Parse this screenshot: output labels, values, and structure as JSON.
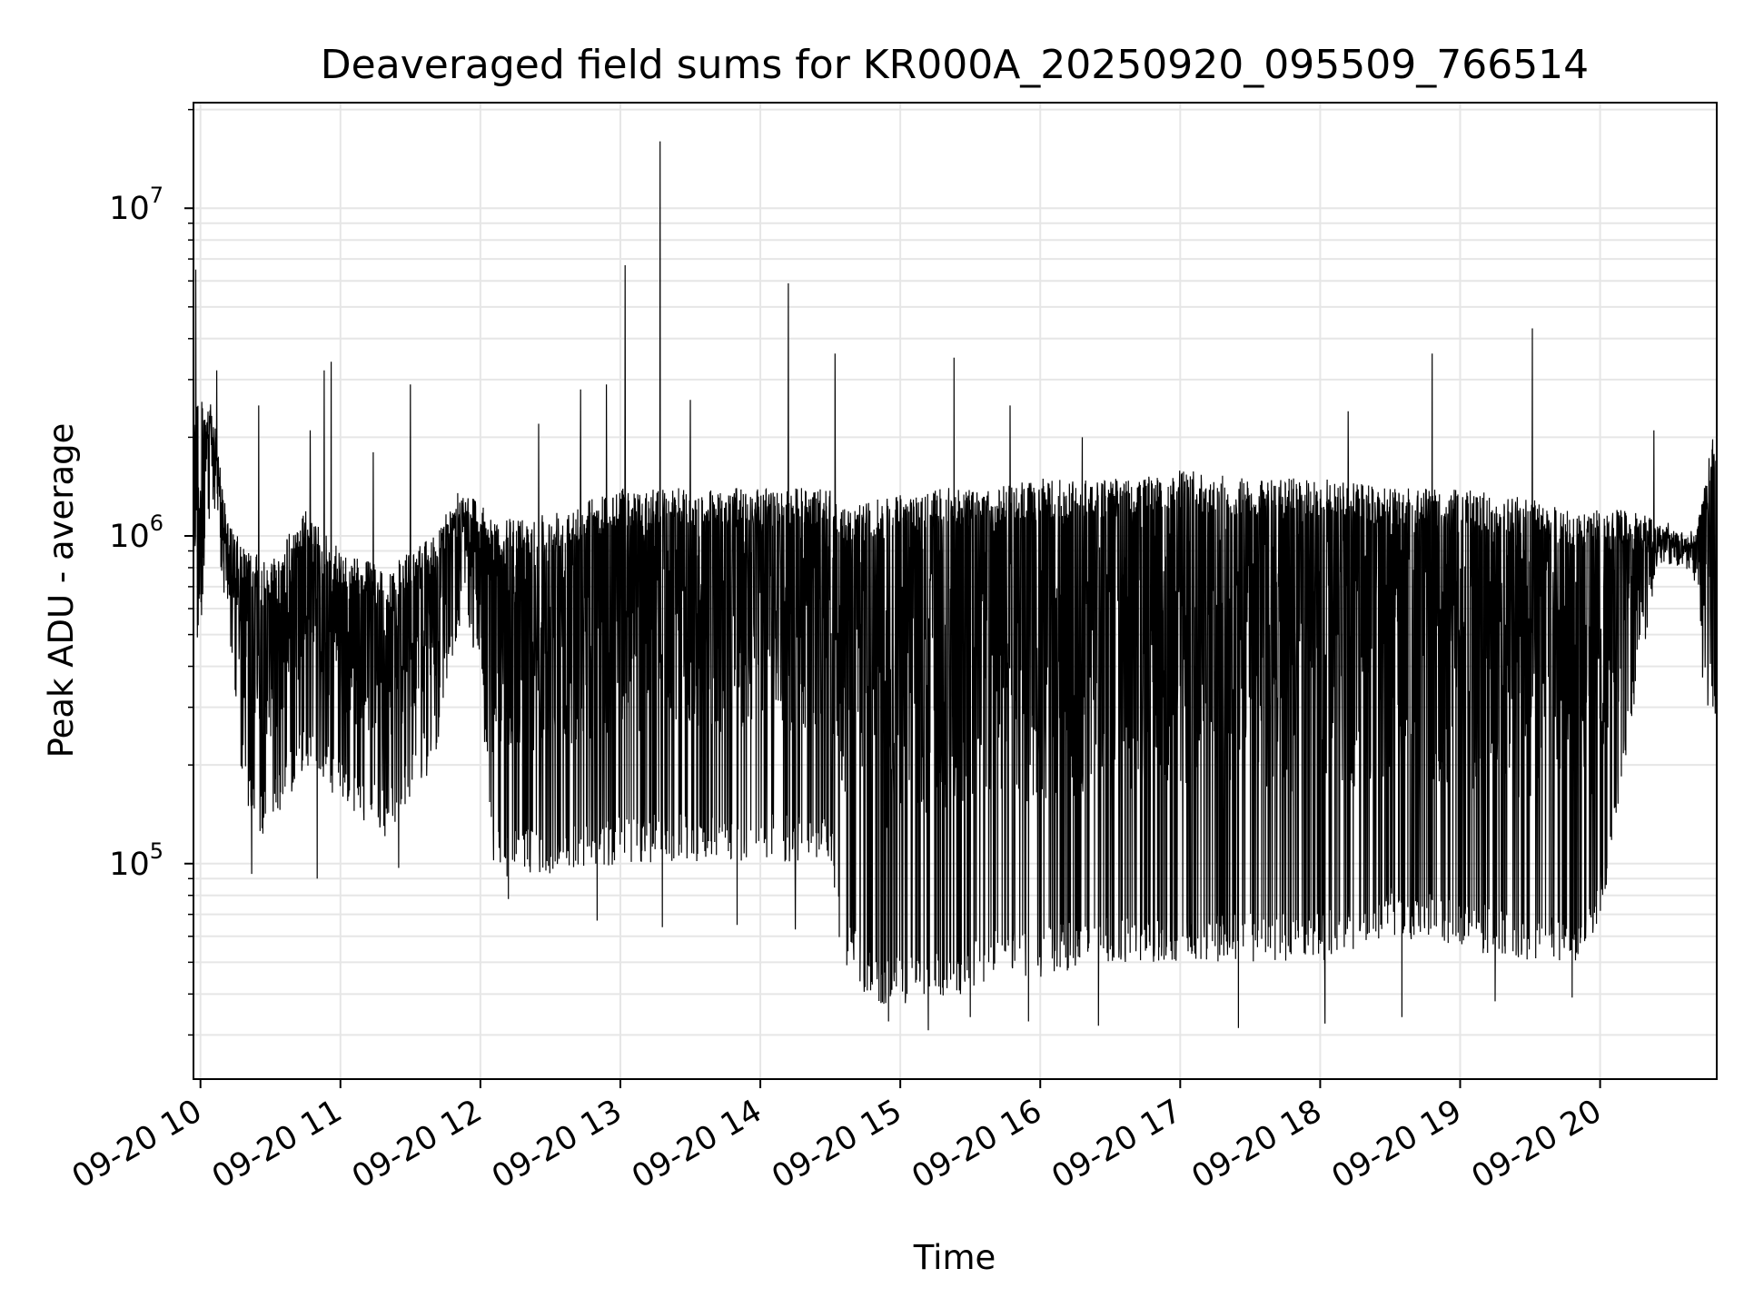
{
  "chart_data": {
    "type": "line",
    "title": "Deaveraged field sums for KR000A_20250920_095509_766514",
    "xlabel": "Time",
    "ylabel": "Peak ADU - average",
    "yscale": "log",
    "ylim": [
      22000,
      21000000
    ],
    "xlim": [
      "2025-09-20 09:57",
      "2025-09-20 20:50"
    ],
    "x_tick_labels": [
      "09-20 10",
      "09-20 11",
      "09-20 12",
      "09-20 13",
      "09-20 14",
      "09-20 15",
      "09-20 16",
      "09-20 17",
      "09-20 18",
      "09-20 19",
      "09-20 20"
    ],
    "y_tick_labels": [
      {
        "base": "10",
        "exp": "5",
        "value": 100000
      },
      {
        "base": "10",
        "exp": "6",
        "value": 1000000
      },
      {
        "base": "10",
        "exp": "7",
        "value": 10000000
      }
    ],
    "grid": true,
    "line_color": "#000000",
    "series": [
      {
        "envelope": [
          {
            "time": "2025-09-20 09:57",
            "low": 320000,
            "high": 2800000
          },
          {
            "time": "2025-09-20 10:05",
            "low": 1200000,
            "high": 2500000
          },
          {
            "time": "2025-09-20 10:12",
            "low": 450000,
            "high": 1100000
          },
          {
            "time": "2025-09-20 10:20",
            "low": 130000,
            "high": 900000
          },
          {
            "time": "2025-09-20 10:30",
            "low": 120000,
            "high": 850000
          },
          {
            "time": "2025-09-20 10:45",
            "low": 200000,
            "high": 1200000
          },
          {
            "time": "2025-09-20 11:00",
            "low": 150000,
            "high": 900000
          },
          {
            "time": "2025-09-20 11:20",
            "low": 120000,
            "high": 800000
          },
          {
            "time": "2025-09-20 11:40",
            "low": 200000,
            "high": 1000000
          },
          {
            "time": "2025-09-20 11:50",
            "low": 500000,
            "high": 1400000
          },
          {
            "time": "2025-09-20 12:00",
            "low": 400000,
            "high": 1300000
          },
          {
            "time": "2025-09-20 12:05",
            "low": 90000,
            "high": 1100000
          },
          {
            "time": "2025-09-20 12:30",
            "low": 90000,
            "high": 1200000
          },
          {
            "time": "2025-09-20 13:00",
            "low": 100000,
            "high": 1400000
          },
          {
            "time": "2025-09-20 13:30",
            "low": 100000,
            "high": 1400000
          },
          {
            "time": "2025-09-20 14:00",
            "low": 100000,
            "high": 1400000
          },
          {
            "time": "2025-09-20 14:30",
            "low": 100000,
            "high": 1400000
          },
          {
            "time": "2025-09-20 14:35",
            "low": 50000,
            "high": 1200000
          },
          {
            "time": "2025-09-20 14:50",
            "low": 36000,
            "high": 1300000
          },
          {
            "time": "2025-09-20 15:20",
            "low": 38000,
            "high": 1400000
          },
          {
            "time": "2025-09-20 15:40",
            "low": 45000,
            "high": 1400000
          },
          {
            "time": "2025-09-20 16:00",
            "low": 45000,
            "high": 1500000
          },
          {
            "time": "2025-09-20 16:30",
            "low": 50000,
            "high": 1500000
          },
          {
            "time": "2025-09-20 17:00",
            "low": 50000,
            "high": 1600000
          },
          {
            "time": "2025-09-20 17:30",
            "low": 50000,
            "high": 1500000
          },
          {
            "time": "2025-09-20 18:00",
            "low": 50000,
            "high": 1500000
          },
          {
            "time": "2025-09-20 18:30",
            "low": 60000,
            "high": 1400000
          },
          {
            "time": "2025-09-20 19:00",
            "low": 55000,
            "high": 1400000
          },
          {
            "time": "2025-09-20 19:30",
            "low": 50000,
            "high": 1300000
          },
          {
            "time": "2025-09-20 19:55",
            "low": 50000,
            "high": 1200000
          },
          {
            "time": "2025-09-20 20:05",
            "low": 100000,
            "high": 1200000
          },
          {
            "time": "2025-09-20 20:15",
            "low": 300000,
            "high": 1200000
          },
          {
            "time": "2025-09-20 20:25",
            "low": 800000,
            "high": 1100000
          },
          {
            "time": "2025-09-20 20:40",
            "low": 750000,
            "high": 1000000
          },
          {
            "time": "2025-09-20 20:45",
            "low": 300000,
            "high": 1500000
          },
          {
            "time": "2025-09-20 20:50",
            "low": 280000,
            "high": 2300000
          }
        ],
        "spikes": [
          {
            "time": "2025-09-20 09:58",
            "value": 6500000
          },
          {
            "time": "2025-09-20 10:07",
            "value": 3200000
          },
          {
            "time": "2025-09-20 10:25",
            "value": 2500000
          },
          {
            "time": "2025-09-20 10:47",
            "value": 2100000
          },
          {
            "time": "2025-09-20 10:53",
            "value": 3200000
          },
          {
            "time": "2025-09-20 10:56",
            "value": 3400000
          },
          {
            "time": "2025-09-20 11:14",
            "value": 1800000
          },
          {
            "time": "2025-09-20 11:30",
            "value": 2900000
          },
          {
            "time": "2025-09-20 12:25",
            "value": 2200000
          },
          {
            "time": "2025-09-20 12:43",
            "value": 2800000
          },
          {
            "time": "2025-09-20 12:54",
            "value": 2900000
          },
          {
            "time": "2025-09-20 13:02",
            "value": 6700000
          },
          {
            "time": "2025-09-20 13:17",
            "value": 16000000
          },
          {
            "time": "2025-09-20 13:30",
            "value": 2600000
          },
          {
            "time": "2025-09-20 14:12",
            "value": 5900000
          },
          {
            "time": "2025-09-20 14:32",
            "value": 3600000
          },
          {
            "time": "2025-09-20 15:23",
            "value": 3500000
          },
          {
            "time": "2025-09-20 15:47",
            "value": 2500000
          },
          {
            "time": "2025-09-20 16:18",
            "value": 2000000
          },
          {
            "time": "2025-09-20 18:12",
            "value": 2400000
          },
          {
            "time": "2025-09-20 18:48",
            "value": 3600000
          },
          {
            "time": "2025-09-20 19:31",
            "value": 4300000
          },
          {
            "time": "2025-09-20 20:23",
            "value": 2100000
          }
        ],
        "dips": [
          {
            "time": "2025-09-20 10:22",
            "value": 93000
          },
          {
            "time": "2025-09-20 10:50",
            "value": 90000
          },
          {
            "time": "2025-09-20 11:25",
            "value": 97000
          },
          {
            "time": "2025-09-20 12:12",
            "value": 78000
          },
          {
            "time": "2025-09-20 12:50",
            "value": 67000
          },
          {
            "time": "2025-09-20 13:18",
            "value": 64000
          },
          {
            "time": "2025-09-20 13:50",
            "value": 65000
          },
          {
            "time": "2025-09-20 14:15",
            "value": 63000
          },
          {
            "time": "2025-09-20 14:55",
            "value": 33000
          },
          {
            "time": "2025-09-20 15:12",
            "value": 31000
          },
          {
            "time": "2025-09-20 15:30",
            "value": 34000
          },
          {
            "time": "2025-09-20 15:55",
            "value": 33000
          },
          {
            "time": "2025-09-20 16:25",
            "value": 32000
          },
          {
            "time": "2025-09-20 17:25",
            "value": 31500
          },
          {
            "time": "2025-09-20 18:02",
            "value": 32500
          },
          {
            "time": "2025-09-20 18:35",
            "value": 34000
          },
          {
            "time": "2025-09-20 19:15",
            "value": 38000
          },
          {
            "time": "2025-09-20 19:48",
            "value": 39000
          }
        ]
      }
    ]
  }
}
